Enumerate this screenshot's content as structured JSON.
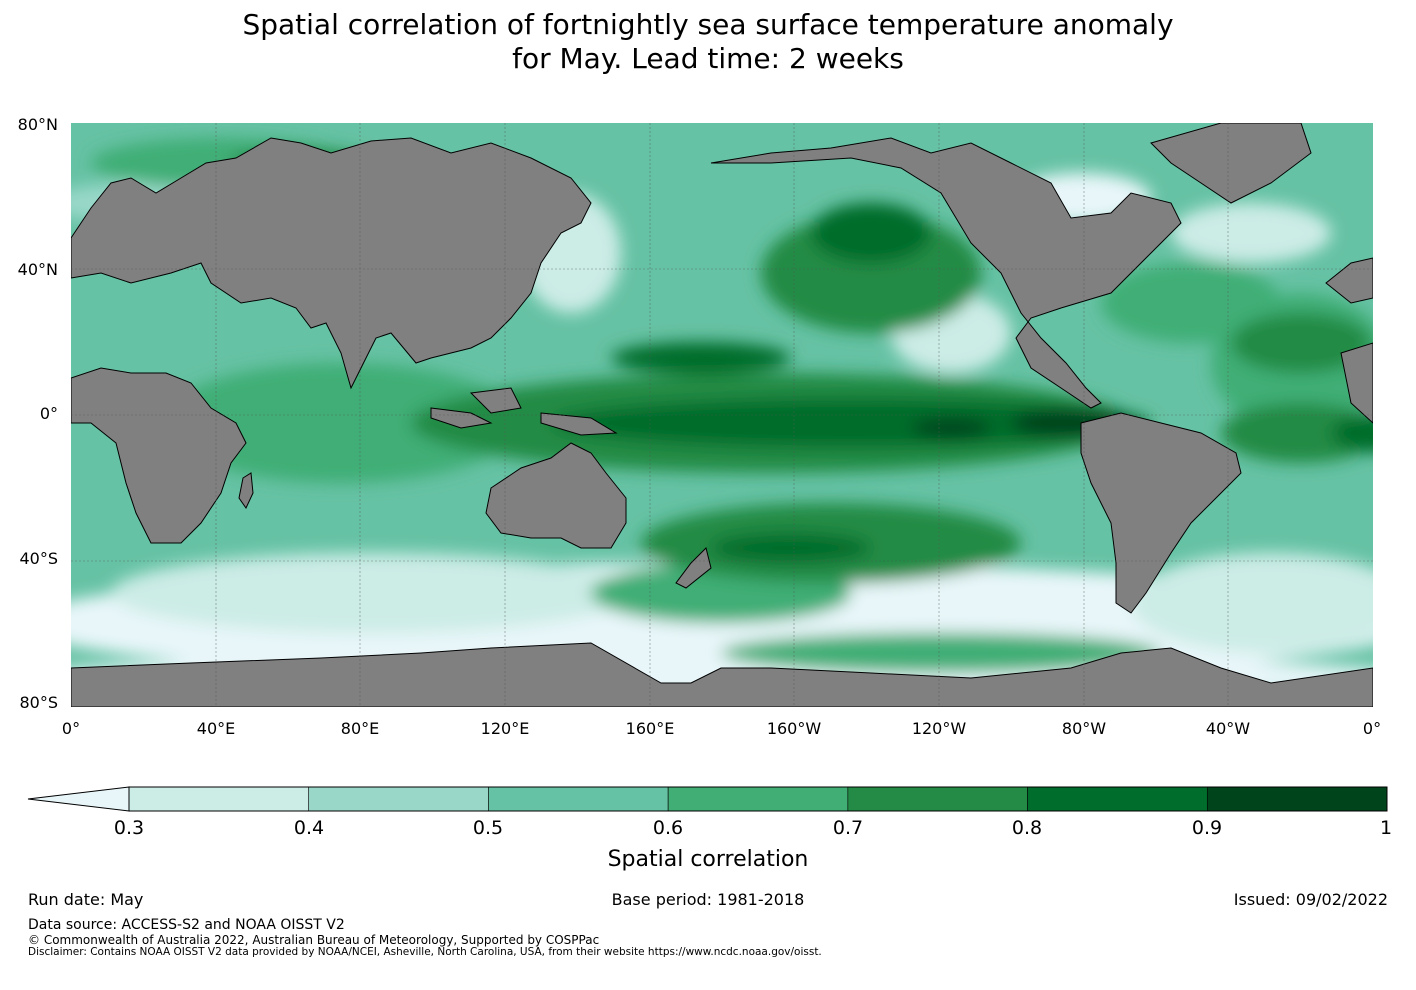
{
  "title": {
    "line1": "Spatial correlation of fortnightly sea surface temperature anomaly",
    "line2": "for May. Lead time: 2 weeks"
  },
  "map": {
    "lat_labels": [
      "80°N",
      "40°N",
      "0°",
      "40°S",
      "80°S"
    ],
    "lon_labels": [
      "0°",
      "40°E",
      "80°E",
      "120°E",
      "160°E",
      "160°W",
      "120°W",
      "80°W",
      "40°W",
      "0°"
    ],
    "land_color": "#808080",
    "low_color": "#e8f6f9"
  },
  "colorbar": {
    "title": "Spatial correlation",
    "bounds": [
      "0.3",
      "0.4",
      "0.5",
      "0.6",
      "0.7",
      "0.8",
      "0.9",
      "1"
    ],
    "under_color": "#e8f6f9",
    "colors": [
      "#ccece6",
      "#99d8c9",
      "#66c2a4",
      "#41ae76",
      "#238b45",
      "#006d2c",
      "#00441b"
    ]
  },
  "meta": {
    "run_date": "Run date: May",
    "base_period": "Base period: 1981-2018",
    "issued": "Issued: 09/02/2022"
  },
  "footer": {
    "data_source": "Data source: ACCESS-S2 and NOAA OISST V2",
    "copyright": "© Commonwealth of Australia 2022, Australian Bureau of Meteorology, Supported by COSPPac",
    "disclaimer": "Disclaimer: Contains NOAA OISST V2 data provided by NOAA/NCEI, Asheville, North Carolina, USA, from their website https://www.ncdc.noaa.gov/oisst."
  }
}
